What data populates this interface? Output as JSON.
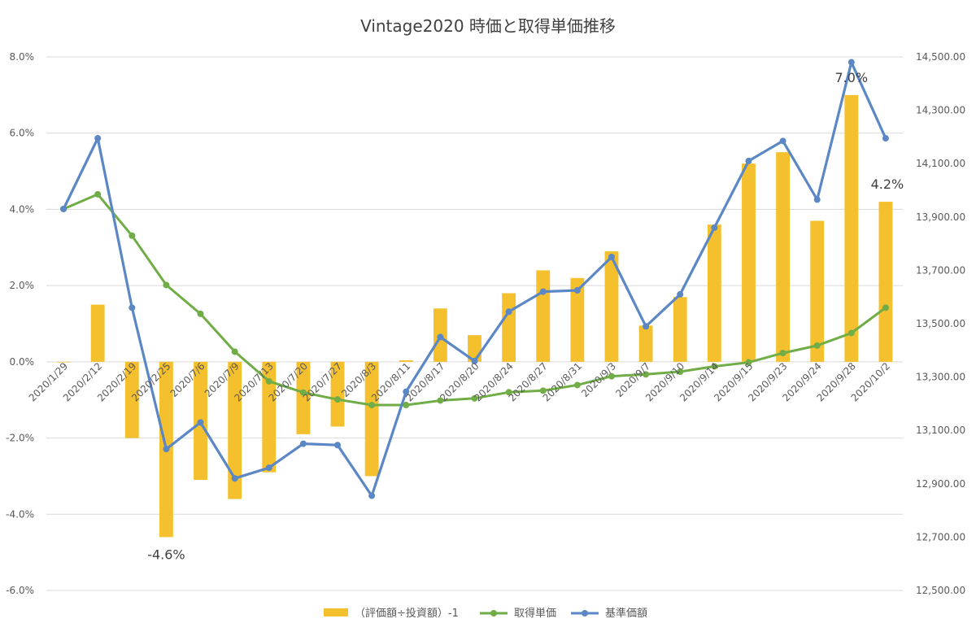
{
  "chart_data": {
    "type": "bar",
    "title": "Vintage2020 時価と取得単価推移",
    "categories": [
      "2020/1/29",
      "2020/2/12",
      "2020/2/19",
      "2020/2/25",
      "2020/7/6",
      "2020/7/9",
      "2020/7/13",
      "2020/7/20",
      "2020/7/27",
      "2020/8/3",
      "2020/8/11",
      "2020/8/17",
      "2020/8/20",
      "2020/8/24",
      "2020/8/27",
      "2020/8/31",
      "2020/9/3",
      "2020/9/7",
      "2020/9/10",
      "2020/9/14",
      "2020/9/15",
      "2020/9/23",
      "2020/9/24",
      "2020/9/28",
      "2020/10/2"
    ],
    "y_left": {
      "min": -6.0,
      "max": 8.0,
      "step": 2.0,
      "ticks": [
        "-6.0%",
        "-4.0%",
        "-2.0%",
        "0.0%",
        "2.0%",
        "4.0%",
        "6.0%",
        "8.0%"
      ]
    },
    "y_right": {
      "min": 12500,
      "max": 14500,
      "step": 200,
      "ticks": [
        "12,500.00",
        "12,700.00",
        "12,900.00",
        "13,100.00",
        "13,300.00",
        "13,500.00",
        "13,700.00",
        "13,900.00",
        "14,100.00",
        "14,300.00",
        "14,500.00"
      ]
    },
    "series": [
      {
        "name": "（評価額÷投資額）-1",
        "type": "bar",
        "axis": "left",
        "color": "#f4c02d",
        "values": [
          0.0,
          1.5,
          -2.0,
          -4.6,
          -3.1,
          -3.6,
          -2.9,
          -1.9,
          -1.7,
          -3.0,
          0.04,
          1.4,
          0.7,
          1.8,
          2.4,
          2.2,
          2.9,
          0.95,
          1.7,
          3.6,
          5.2,
          5.5,
          3.7,
          7.0,
          4.2
        ]
      },
      {
        "name": "取得単価",
        "type": "line",
        "axis": "right",
        "color": "#70ad47",
        "values": [
          13930,
          13985,
          13830,
          13645,
          13537,
          13395,
          13284,
          13242,
          13216,
          13195,
          13195,
          13212,
          13220,
          13243,
          13249,
          13270,
          13303,
          13310,
          13320,
          13340,
          13355,
          13390,
          13418,
          13465,
          13560
        ]
      },
      {
        "name": "基準価額",
        "type": "line",
        "axis": "right",
        "color": "#5b87c5",
        "values": [
          13930,
          14195,
          13560,
          13030,
          13130,
          12920,
          12960,
          13050,
          13045,
          12855,
          13245,
          13450,
          13360,
          13545,
          13620,
          13625,
          13750,
          13490,
          13610,
          13860,
          14110,
          14185,
          13965,
          14480,
          14195
        ]
      }
    ],
    "data_labels": [
      {
        "index": 3,
        "text": "-4.6%"
      },
      {
        "index": 23,
        "text": "7.0%"
      },
      {
        "index": 24,
        "text": "4.2%"
      }
    ],
    "legend_position": "bottom",
    "grid": true
  }
}
